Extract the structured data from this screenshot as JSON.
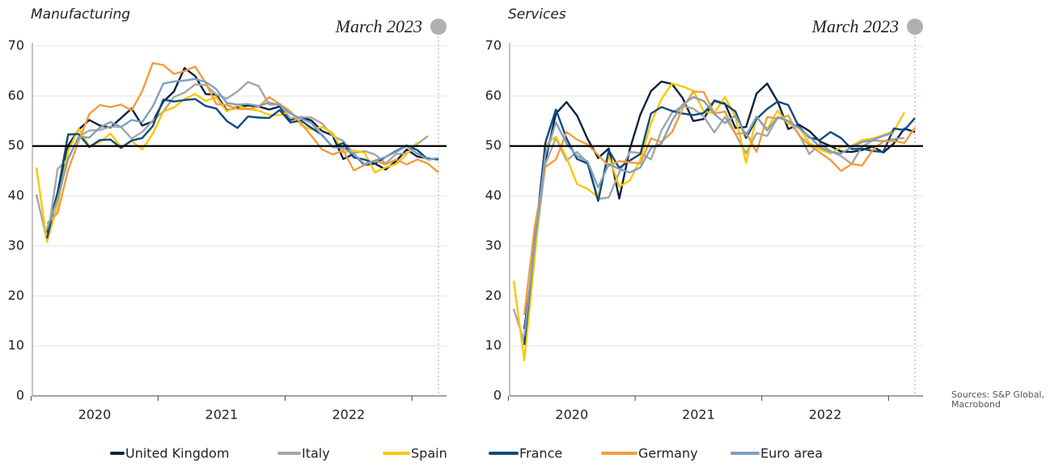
{
  "chart_data": [
    {
      "type": "line",
      "title": "Manufacturing",
      "annotation": "March 2023",
      "x": [
        "2020-01",
        "2020-02",
        "2020-03",
        "2020-04",
        "2020-05",
        "2020-06",
        "2020-07",
        "2020-08",
        "2020-09",
        "2020-10",
        "2020-11",
        "2020-12",
        "2021-01",
        "2021-02",
        "2021-03",
        "2021-04",
        "2021-05",
        "2021-06",
        "2021-07",
        "2021-08",
        "2021-09",
        "2021-10",
        "2021-11",
        "2021-12",
        "2022-01",
        "2022-02",
        "2022-03",
        "2022-04",
        "2022-05",
        "2022-06",
        "2022-07",
        "2022-08",
        "2022-09",
        "2022-10",
        "2022-11",
        "2022-12",
        "2023-01",
        "2023-02",
        "2023-03"
      ],
      "xticks": [
        {
          "value": "2020-01",
          "label": "2020"
        },
        {
          "value": "2021-01",
          "label": "2021"
        },
        {
          "value": "2022-01",
          "label": "2022"
        }
      ],
      "ylim": [
        0,
        70
      ],
      "yticks": [
        0,
        10,
        20,
        30,
        40,
        50,
        60,
        70
      ],
      "grid": true,
      "refline": 50,
      "series": [
        {
          "name": "United Kingdom",
          "color": "#0a2240",
          "values": [
            null,
            32.6,
            40.7,
            50.1,
            53.3,
            55.2,
            54.1,
            53.7,
            55.6,
            57.5,
            54.1,
            54.9,
            58.9,
            60.9,
            65.6,
            64.0,
            60.4,
            60.3,
            57.1,
            57.8,
            58.1,
            57.9,
            57.3,
            57.9,
            55.2,
            55.8,
            55.1,
            53.0,
            52.1,
            47.4,
            48.4,
            46.2,
            46.5,
            45.3,
            47.0,
            49.3,
            47.9,
            47.5,
            47.3
          ]
        },
        {
          "name": "Italy",
          "color": "#a6a6a6",
          "values": [
            40.3,
            31.1,
            45.4,
            47.5,
            51.9,
            53.1,
            53.2,
            53.9,
            53.8,
            51.5,
            52.8,
            55.1,
            56.9,
            59.8,
            60.7,
            62.3,
            62.2,
            60.3,
            59.5,
            60.9,
            62.8,
            62.0,
            58.3,
            58.3,
            55.5,
            55.8,
            55.7,
            54.5,
            52.0,
            51.0,
            48.6,
            49.0,
            48.3,
            46.5,
            48.4,
            48.5,
            50.4,
            52.0,
            null
          ]
        },
        {
          "name": "Spain",
          "color": "#fac800",
          "values": [
            45.7,
            30.8,
            38.3,
            49.0,
            53.5,
            49.9,
            50.8,
            52.5,
            49.8,
            51.0,
            49.3,
            52.5,
            56.9,
            57.7,
            59.4,
            60.4,
            59.0,
            59.8,
            56.9,
            58.1,
            57.4,
            57.1,
            56.2,
            56.2,
            56.9,
            54.2,
            53.3,
            53.8,
            52.6,
            48.7,
            49.1,
            48.7,
            44.7,
            45.7,
            46.4,
            48.4,
            50.7,
            null,
            null
          ]
        },
        {
          "name": "France",
          "color": "#0e4a7c",
          "values": [
            null,
            31.5,
            40.6,
            52.3,
            52.4,
            49.8,
            51.2,
            51.3,
            49.6,
            51.1,
            51.6,
            54.0,
            59.3,
            58.9,
            59.2,
            59.4,
            58.0,
            57.5,
            55.0,
            53.6,
            55.9,
            55.7,
            55.6,
            57.2,
            54.7,
            55.1,
            53.6,
            52.2,
            49.8,
            50.6,
            47.7,
            47.3,
            46.5,
            47.8,
            49.0,
            50.1,
            49.2,
            47.3,
            47.5
          ]
        },
        {
          "name": "Germany",
          "color": "#f59c3a",
          "values": [
            null,
            34.5,
            36.6,
            45.2,
            51.0,
            56.4,
            58.2,
            57.8,
            58.3,
            57.1,
            61.0,
            66.6,
            66.2,
            64.4,
            65.0,
            65.9,
            62.6,
            58.4,
            58.2,
            57.4,
            57.4,
            57.8,
            59.8,
            58.4,
            56.9,
            54.6,
            52.0,
            49.3,
            48.3,
            49.1,
            45.1,
            46.2,
            47.1,
            46.3,
            47.3,
            46.3,
            47.3,
            46.5,
            44.7
          ]
        },
        {
          "name": "Euro area",
          "color": "#7f9fc0",
          "values": [
            null,
            33.4,
            39.4,
            47.4,
            51.8,
            51.7,
            53.7,
            54.8,
            53.8,
            55.2,
            54.8,
            57.9,
            62.5,
            62.9,
            63.1,
            63.4,
            62.8,
            61.4,
            58.6,
            58.3,
            58.4,
            58.0,
            58.7,
            58.2,
            56.5,
            55.5,
            54.6,
            52.1,
            49.8,
            49.6,
            48.4,
            46.4,
            47.1,
            47.8,
            48.8,
            50.0,
            48.5,
            47.3,
            47.6
          ]
        }
      ]
    },
    {
      "type": "line",
      "title": "Services",
      "annotation": "March 2023",
      "x": [
        "2020-01",
        "2020-02",
        "2020-03",
        "2020-04",
        "2020-05",
        "2020-06",
        "2020-07",
        "2020-08",
        "2020-09",
        "2020-10",
        "2020-11",
        "2020-12",
        "2021-01",
        "2021-02",
        "2021-03",
        "2021-04",
        "2021-05",
        "2021-06",
        "2021-07",
        "2021-08",
        "2021-09",
        "2021-10",
        "2021-11",
        "2021-12",
        "2022-01",
        "2022-02",
        "2022-03",
        "2022-04",
        "2022-05",
        "2022-06",
        "2022-07",
        "2022-08",
        "2022-09",
        "2022-10",
        "2022-11",
        "2022-12",
        "2023-01",
        "2023-02",
        "2023-03"
      ],
      "xticks": [
        {
          "value": "2020-01",
          "label": "2020"
        },
        {
          "value": "2021-01",
          "label": "2021"
        },
        {
          "value": "2022-01",
          "label": "2022"
        }
      ],
      "ylim": [
        0,
        70
      ],
      "yticks": [
        0,
        10,
        20,
        30,
        40,
        50,
        60,
        70
      ],
      "grid": true,
      "refline": 50,
      "series": [
        {
          "name": "United Kingdom",
          "color": "#0a2240",
          "values": [
            null,
            13.4,
            29.0,
            47.1,
            56.5,
            58.8,
            56.1,
            51.4,
            47.6,
            49.5,
            39.5,
            49.4,
            56.3,
            61.0,
            62.9,
            62.4,
            59.6,
            55.0,
            55.4,
            59.1,
            58.5,
            53.6,
            53.8,
            60.5,
            62.5,
            58.9,
            53.4,
            54.3,
            53.0,
            50.9,
            50.0,
            48.9,
            48.8,
            49.2,
            49.9,
            48.7,
            50.5,
            53.5,
            52.8
          ]
        },
        {
          "name": "Italy",
          "color": "#a6a6a6",
          "values": [
            17.4,
            10.8,
            28.9,
            46.4,
            51.6,
            47.1,
            48.8,
            46.7,
            39.4,
            39.7,
            44.7,
            48.8,
            48.6,
            47.3,
            53.1,
            56.7,
            58.0,
            57.5,
            55.9,
            52.7,
            55.8,
            52.4,
            48.5,
            52.6,
            52.0,
            55.7,
            55.0,
            52.4,
            48.4,
            50.5,
            49.0,
            48.0,
            46.4,
            49.9,
            51.1,
            51.0,
            51.4,
            51.6,
            null
          ]
        },
        {
          "name": "Spain",
          "color": "#fac800",
          "values": [
            23.0,
            7.1,
            27.9,
            50.2,
            51.9,
            47.7,
            42.4,
            41.4,
            39.8,
            48.0,
            41.9,
            43.1,
            47.3,
            54.6,
            59.4,
            62.5,
            61.9,
            61.1,
            56.9,
            56.6,
            59.8,
            55.8,
            46.6,
            55.8,
            53.4,
            57.1,
            54.4,
            53.8,
            50.6,
            49.3,
            48.5,
            49.8,
            50.0,
            51.2,
            51.5,
            52.2,
            53.0,
            56.7,
            null
          ]
        },
        {
          "name": "France",
          "color": "#0e4a7c",
          "values": [
            null,
            10.2,
            31.1,
            50.7,
            57.3,
            51.5,
            47.4,
            46.5,
            39.0,
            49.1,
            45.6,
            47.1,
            48.4,
            56.5,
            57.8,
            57.0,
            56.5,
            56.2,
            56.6,
            59.0,
            58.4,
            56.9,
            51.6,
            55.4,
            57.4,
            58.9,
            58.2,
            53.9,
            51.7,
            51.2,
            52.8,
            51.6,
            49.4,
            49.5,
            49.0,
            48.8,
            53.5,
            53.2,
            55.6
          ]
        },
        {
          "name": "Germany",
          "color": "#f59c3a",
          "values": [
            null,
            16.2,
            34.0,
            45.8,
            47.3,
            52.8,
            51.3,
            50.3,
            48.2,
            46.0,
            47.0,
            46.7,
            46.5,
            51.5,
            50.8,
            52.8,
            57.5,
            60.9,
            60.8,
            56.5,
            56.9,
            52.4,
            52.7,
            48.8,
            55.8,
            55.5,
            56.1,
            52.2,
            50.2,
            48.7,
            47.2,
            45.0,
            46.4,
            46.1,
            49.2,
            50.9,
            51.0,
            50.6,
            53.7
          ]
        },
        {
          "name": "Euro area",
          "color": "#7f9fc0",
          "values": [
            null,
            12.0,
            30.5,
            48.3,
            54.7,
            50.5,
            48.0,
            46.9,
            41.7,
            46.4,
            45.4,
            44.7,
            45.7,
            49.6,
            50.5,
            55.1,
            58.3,
            59.8,
            59.0,
            56.4,
            54.6,
            56.1,
            52.1,
            55.9,
            53.1,
            55.8,
            55.0,
            53.6,
            51.9,
            49.8,
            48.8,
            48.5,
            49.8,
            50.8,
            51.2,
            52.0,
            52.7,
            null,
            null
          ]
        }
      ]
    }
  ],
  "source": "Sources: S&P Global, Macrobond"
}
